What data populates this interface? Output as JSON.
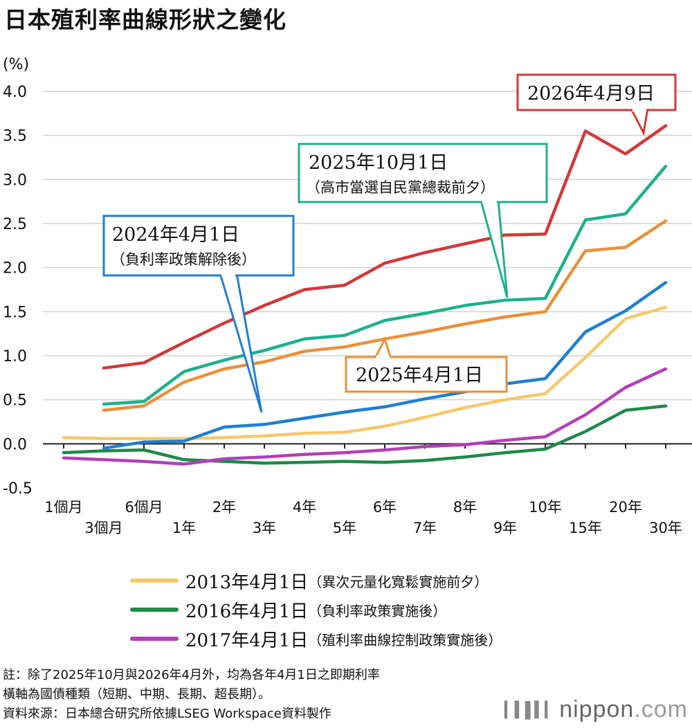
{
  "title": "日本殖利率曲線形狀之變化",
  "colors": {
    "yellow": "#F6C86A",
    "green": "#1E8A47",
    "purple": "#B23FB8",
    "blue": "#1F7FD1",
    "orange": "#E8913A",
    "teal": "#1EB08C",
    "red": "#D2393A",
    "grid": "#d0d0d0",
    "axis": "#222222"
  },
  "chart_data": {
    "type": "line",
    "unit_label": "(%)",
    "ylim": [
      -0.5,
      4.0
    ],
    "y_ticks": [
      "-0.5",
      "0.0",
      "0.5",
      "1.0",
      "1.5",
      "2.0",
      "2.5",
      "3.0",
      "3.5",
      "4.0"
    ],
    "y_tick_values": [
      -0.5,
      0.0,
      0.5,
      1.0,
      1.5,
      2.0,
      2.5,
      3.0,
      3.5,
      4.0
    ],
    "categories": [
      "1個月",
      "3個月",
      "6個月",
      "1年",
      "2年",
      "3年",
      "4年",
      "5年",
      "6年",
      "7年",
      "8年",
      "9年",
      "10年",
      "15年",
      "20年",
      "30年"
    ],
    "grid": true,
    "series": [
      {
        "name": "2013年4月1日",
        "color_key": "yellow",
        "values": [
          0.07,
          0.06,
          0.06,
          0.06,
          0.07,
          0.09,
          0.12,
          0.13,
          0.2,
          0.3,
          0.41,
          0.5,
          0.57,
          0.98,
          1.42,
          1.55
        ]
      },
      {
        "name": "2016年4月1日",
        "color_key": "green",
        "values": [
          -0.1,
          -0.08,
          -0.07,
          -0.18,
          -0.2,
          -0.22,
          -0.21,
          -0.2,
          -0.21,
          -0.19,
          -0.15,
          -0.1,
          -0.06,
          0.14,
          0.38,
          0.43
        ]
      },
      {
        "name": "2017年4月1日",
        "color_key": "purple",
        "values": [
          -0.16,
          -0.18,
          -0.2,
          -0.23,
          -0.17,
          -0.15,
          -0.12,
          -0.1,
          -0.07,
          -0.03,
          -0.01,
          0.04,
          0.08,
          0.33,
          0.64,
          0.85
        ]
      },
      {
        "name": "2024年4月1日",
        "color_key": "blue",
        "values": [
          null,
          -0.05,
          0.02,
          0.03,
          0.19,
          0.22,
          0.29,
          0.36,
          0.42,
          0.51,
          0.59,
          0.68,
          0.74,
          1.27,
          1.51,
          1.83
        ]
      },
      {
        "name": "2025年4月1日",
        "color_key": "orange",
        "values": [
          null,
          0.38,
          0.43,
          0.7,
          0.85,
          0.93,
          1.05,
          1.1,
          1.19,
          1.27,
          1.36,
          1.44,
          1.5,
          2.19,
          2.23,
          2.53
        ]
      },
      {
        "name": "2025年10月1日",
        "color_key": "teal",
        "values": [
          null,
          0.45,
          0.48,
          0.82,
          0.95,
          1.06,
          1.19,
          1.23,
          1.4,
          1.48,
          1.57,
          1.63,
          1.65,
          2.54,
          2.61,
          3.15
        ]
      },
      {
        "name": "2026年4月9日",
        "color_key": "red",
        "values": [
          null,
          0.86,
          0.92,
          1.15,
          1.37,
          1.57,
          1.75,
          1.8,
          2.05,
          2.17,
          2.27,
          2.37,
          2.38,
          3.55,
          3.29,
          3.61
        ]
      }
    ]
  },
  "callouts": {
    "c2024_date": "2024年4月1日",
    "c2024_note": "（負利率政策解除後）",
    "c2025oct_date": "2025年10月1日",
    "c2025oct_note": "（高市當選自民黨總裁前夕）",
    "c2026_date": "2026年4月9日",
    "c2025apr_date": "2025年4月1日"
  },
  "legend": [
    {
      "date": "2013年4月1日",
      "note": "（異次元量化寬鬆實施前夕）",
      "color_key": "yellow"
    },
    {
      "date": "2016年4月1日",
      "note": "（負利率政策實施後）",
      "color_key": "green"
    },
    {
      "date": "2017年4月1日",
      "note": "（殖利率曲線控制政策實施後）",
      "color_key": "purple"
    }
  ],
  "notes": {
    "line1": "註：除了2025年10月與2026年4月外，均為各年4月1日之即期利率",
    "line2": "橫軸為國債種類（短期、中期、長期、超長期）。",
    "line3": "資料來源：日本總合研究所依據LSEG Workspace資料製作"
  },
  "logo": {
    "main": "nippon",
    "suffix": ".com",
    "bars_icon": "barcode-bars-icon"
  }
}
